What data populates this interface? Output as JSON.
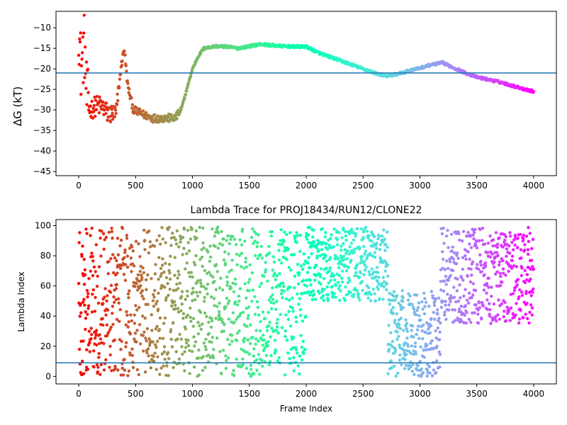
{
  "chart_data": [
    {
      "type": "scatter",
      "title": "",
      "xlabel": "",
      "ylabel": "ΔG (kT)",
      "xlim": [
        -200,
        4200
      ],
      "ylim": [
        -46,
        -6
      ],
      "xticks": [
        0,
        500,
        1000,
        1500,
        2000,
        2500,
        3000,
        3500,
        4000
      ],
      "yticks": [
        -45,
        -40,
        -35,
        -30,
        -25,
        -20,
        -15,
        -10
      ],
      "hline": -21,
      "grid": false,
      "colormap": "rainbow (reversed: red at frame 0 → violet at frame 4000)",
      "trace_keypoints": [
        {
          "x": 0,
          "y": -9
        },
        {
          "x": 20,
          "y": -20
        },
        {
          "x": 50,
          "y": -14
        },
        {
          "x": 70,
          "y": -27
        },
        {
          "x": 100,
          "y": -30
        },
        {
          "x": 150,
          "y": -29
        },
        {
          "x": 200,
          "y": -29
        },
        {
          "x": 260,
          "y": -31
        },
        {
          "x": 330,
          "y": -31
        },
        {
          "x": 370,
          "y": -20
        },
        {
          "x": 400,
          "y": -15
        },
        {
          "x": 430,
          "y": -24
        },
        {
          "x": 480,
          "y": -30
        },
        {
          "x": 560,
          "y": -31
        },
        {
          "x": 650,
          "y": -32
        },
        {
          "x": 750,
          "y": -32
        },
        {
          "x": 850,
          "y": -32
        },
        {
          "x": 900,
          "y": -30
        },
        {
          "x": 950,
          "y": -25
        },
        {
          "x": 1000,
          "y": -20
        },
        {
          "x": 1050,
          "y": -17
        },
        {
          "x": 1100,
          "y": -15
        },
        {
          "x": 1200,
          "y": -14.5
        },
        {
          "x": 1300,
          "y": -14.6
        },
        {
          "x": 1400,
          "y": -15
        },
        {
          "x": 1500,
          "y": -14.5
        },
        {
          "x": 1600,
          "y": -14
        },
        {
          "x": 1700,
          "y": -14.3
        },
        {
          "x": 1800,
          "y": -14.5
        },
        {
          "x": 1900,
          "y": -14.6
        },
        {
          "x": 2000,
          "y": -14.6
        },
        {
          "x": 2100,
          "y": -16
        },
        {
          "x": 2200,
          "y": -17
        },
        {
          "x": 2300,
          "y": -18
        },
        {
          "x": 2400,
          "y": -19
        },
        {
          "x": 2500,
          "y": -20
        },
        {
          "x": 2600,
          "y": -21
        },
        {
          "x": 2700,
          "y": -21.8
        },
        {
          "x": 2800,
          "y": -21.3
        },
        {
          "x": 2900,
          "y": -20.5
        },
        {
          "x": 3000,
          "y": -19.8
        },
        {
          "x": 3100,
          "y": -19
        },
        {
          "x": 3200,
          "y": -18.5
        },
        {
          "x": 3300,
          "y": -19.8
        },
        {
          "x": 3400,
          "y": -21
        },
        {
          "x": 3500,
          "y": -22
        },
        {
          "x": 3600,
          "y": -22.6
        },
        {
          "x": 3700,
          "y": -23.2
        },
        {
          "x": 3800,
          "y": -24
        },
        {
          "x": 3900,
          "y": -24.8
        },
        {
          "x": 4000,
          "y": -25.5
        }
      ]
    },
    {
      "type": "scatter",
      "title": "Lambda Trace for PROJ18434/RUN12/CLONE22",
      "xlabel": "Frame Index",
      "ylabel": "Lambda Index",
      "xlim": [
        -200,
        4200
      ],
      "ylim": [
        -5,
        104
      ],
      "xticks": [
        0,
        500,
        1000,
        1500,
        2000,
        2500,
        3000,
        3500,
        4000
      ],
      "yticks": [
        0,
        20,
        40,
        60,
        80,
        100
      ],
      "hline": 9,
      "grid": false,
      "colormap": "rainbow (reversed: red at frame 0 → violet at frame 4000)",
      "segments": [
        {
          "x_range": [
            0,
            2000
          ],
          "y_range": [
            0,
            99
          ],
          "note": "uniformly sampled"
        },
        {
          "x_range": [
            2000,
            2720
          ],
          "y_range": [
            50,
            99
          ]
        },
        {
          "x_range": [
            2720,
            3180
          ],
          "y_range": [
            0,
            57
          ]
        },
        {
          "x_range": [
            3180,
            4000
          ],
          "y_range": [
            35,
            99
          ]
        }
      ]
    }
  ]
}
